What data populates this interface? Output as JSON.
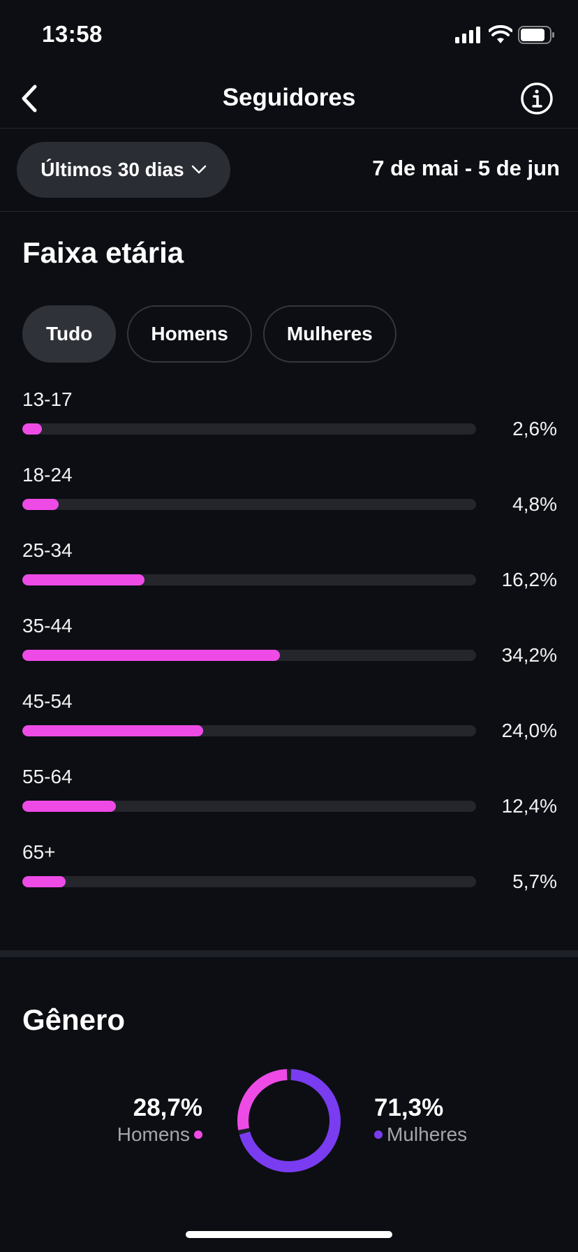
{
  "status_bar": {
    "time": "13:58"
  },
  "nav": {
    "title": "Seguidores"
  },
  "filters": {
    "period_label": "Últimos 30 dias",
    "date_range": "7 de mai - 5 de jun"
  },
  "age": {
    "title": "Faixa etária",
    "segments": [
      "Tudo",
      "Homens",
      "Mulheres"
    ],
    "selected_segment": "Tudo",
    "rows": [
      {
        "label": "13-17",
        "value": "2,6%",
        "fraction": 0.026
      },
      {
        "label": "18-24",
        "value": "4,8%",
        "fraction": 0.048
      },
      {
        "label": "25-34",
        "value": "16,2%",
        "fraction": 0.162
      },
      {
        "label": "35-44",
        "value": "34,2%",
        "fraction": 0.342
      },
      {
        "label": "45-54",
        "value": "24,0%",
        "fraction": 0.24
      },
      {
        "label": "55-64",
        "value": "12,4%",
        "fraction": 0.124
      },
      {
        "label": "65+",
        "value": "5,7%",
        "fraction": 0.057
      }
    ]
  },
  "gender": {
    "title": "Gênero",
    "men": {
      "label": "Homens",
      "value": "28,7%",
      "fraction": 0.287,
      "color": "#ee4be6"
    },
    "women": {
      "label": "Mulheres",
      "value": "71,3%",
      "fraction": 0.713,
      "color": "#7a3cf0"
    }
  },
  "colors": {
    "background": "#0c0e13",
    "bar_fill": "#ee4be6",
    "bar_track": "#24262c"
  }
}
